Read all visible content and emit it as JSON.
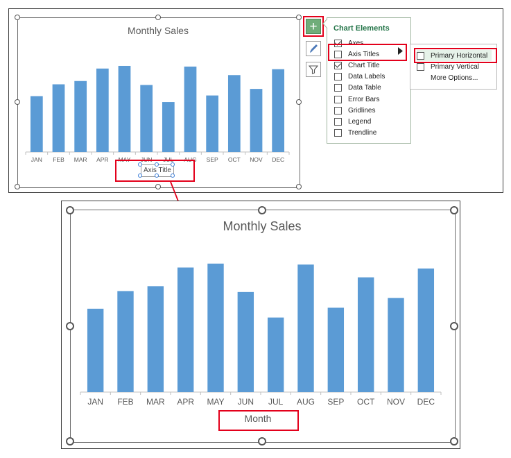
{
  "top_chart": {
    "title": "Monthly Sales",
    "axis_title_placeholder": "Axis Title"
  },
  "bottom_chart": {
    "title": "Monthly Sales",
    "axis_title": "Month"
  },
  "chart_data": [
    {
      "type": "bar",
      "title": "Monthly Sales",
      "xlabel": "",
      "ylabel": "",
      "categories": [
        "JAN",
        "FEB",
        "MAR",
        "APR",
        "MAY",
        "JUN",
        "JUL",
        "AUG",
        "SEP",
        "OCT",
        "NOV",
        "DEC"
      ],
      "values": [
        85,
        103,
        108,
        127,
        131,
        102,
        76,
        130,
        86,
        117,
        96,
        126
      ],
      "ylim": [
        0,
        150
      ],
      "grid": false,
      "bar_color": "#5b9bd5"
    },
    {
      "type": "bar",
      "title": "Monthly Sales",
      "xlabel": "Month",
      "ylabel": "",
      "categories": [
        "JAN",
        "FEB",
        "MAR",
        "APR",
        "MAY",
        "JUN",
        "JUL",
        "AUG",
        "SEP",
        "OCT",
        "NOV",
        "DEC"
      ],
      "values": [
        85,
        103,
        108,
        127,
        131,
        102,
        76,
        130,
        86,
        117,
        96,
        126
      ],
      "ylim": [
        0,
        150
      ],
      "grid": false,
      "bar_color": "#5b9bd5"
    }
  ],
  "side_buttons": [
    {
      "name": "chart-elements-button",
      "icon": "plus-icon"
    },
    {
      "name": "chart-styles-button",
      "icon": "brush-icon"
    },
    {
      "name": "chart-filters-button",
      "icon": "filter-icon"
    }
  ],
  "elements_panel": {
    "title": "Chart Elements",
    "items": [
      {
        "label": "Axes",
        "checked": true
      },
      {
        "label": "Axis Titles",
        "checked": false
      },
      {
        "label": "Chart Title",
        "checked": true
      },
      {
        "label": "Data Labels",
        "checked": false
      },
      {
        "label": "Data Table",
        "checked": false
      },
      {
        "label": "Error Bars",
        "checked": false
      },
      {
        "label": "Gridlines",
        "checked": false
      },
      {
        "label": "Legend",
        "checked": false
      },
      {
        "label": "Trendline",
        "checked": false
      }
    ]
  },
  "submenu": {
    "items": [
      {
        "label": "Primary Horizontal",
        "checked": false
      },
      {
        "label": "Primary Vertical",
        "checked": false
      },
      {
        "label": "More Options...",
        "checked": null
      }
    ]
  },
  "colors": {
    "bar": "#5b9bd5",
    "highlight_red": "#e3001b",
    "excel_green": "#217346",
    "button_green": "#70ad7a"
  }
}
